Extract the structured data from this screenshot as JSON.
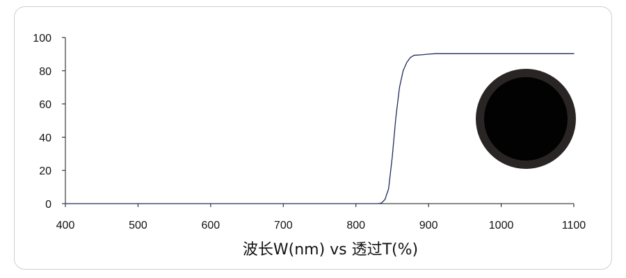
{
  "chart_data": {
    "type": "line",
    "title": "",
    "xlabel": "波长W(nm) vs 透过T(%)",
    "ylabel": "",
    "xlim": [
      400,
      1100
    ],
    "ylim": [
      0,
      100
    ],
    "x_ticks": [
      400,
      500,
      600,
      700,
      800,
      900,
      1000,
      1100
    ],
    "y_ticks": [
      0,
      20,
      40,
      60,
      80,
      100
    ],
    "grid": false,
    "legend": "none",
    "series": [
      {
        "color": "#1f2a5a",
        "x": [
          400,
          830,
          835,
          840,
          845,
          850,
          855,
          860,
          865,
          870,
          875,
          880,
          890,
          900,
          910,
          950,
          1000,
          1050,
          1100
        ],
        "y": [
          0,
          0,
          0.3,
          2.5,
          9,
          28,
          52,
          70,
          80,
          85,
          88,
          89.3,
          89.6,
          90,
          90.3,
          90.3,
          90.3,
          90.3,
          90.3
        ]
      }
    ],
    "inset_image": {
      "description_icon": "round-black-filter-disc-icon",
      "outer_color": "#2a2525",
      "inner_color": "#020202"
    }
  }
}
